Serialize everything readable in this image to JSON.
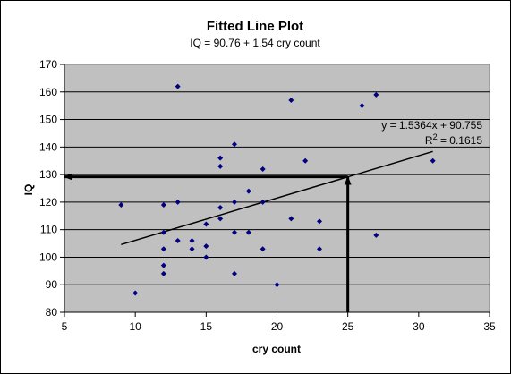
{
  "chart_data": {
    "type": "scatter",
    "title": "Fitted Line Plot",
    "subtitle": "IQ = 90.76 + 1.54 cry count",
    "xlabel": "cry count",
    "ylabel": "IQ",
    "xlim": [
      5,
      35
    ],
    "ylim": [
      80,
      170
    ],
    "xticks": [
      5,
      10,
      15,
      20,
      25,
      30,
      35
    ],
    "yticks": [
      80,
      90,
      100,
      110,
      120,
      130,
      140,
      150,
      160,
      170
    ],
    "grid": true,
    "legend": "none",
    "point_color": "#000080",
    "plot_background": "#c0c0c0",
    "points": [
      {
        "x": 9,
        "y": 119
      },
      {
        "x": 10,
        "y": 87
      },
      {
        "x": 12,
        "y": 94
      },
      {
        "x": 12,
        "y": 97
      },
      {
        "x": 12,
        "y": 103
      },
      {
        "x": 12,
        "y": 109
      },
      {
        "x": 12,
        "y": 119
      },
      {
        "x": 13,
        "y": 106
      },
      {
        "x": 13,
        "y": 120
      },
      {
        "x": 13,
        "y": 162
      },
      {
        "x": 14,
        "y": 103
      },
      {
        "x": 14,
        "y": 106
      },
      {
        "x": 15,
        "y": 100
      },
      {
        "x": 15,
        "y": 104
      },
      {
        "x": 15,
        "y": 112
      },
      {
        "x": 16,
        "y": 114
      },
      {
        "x": 16,
        "y": 118
      },
      {
        "x": 16,
        "y": 133
      },
      {
        "x": 16,
        "y": 136
      },
      {
        "x": 17,
        "y": 94
      },
      {
        "x": 17,
        "y": 109
      },
      {
        "x": 17,
        "y": 120
      },
      {
        "x": 17,
        "y": 141
      },
      {
        "x": 18,
        "y": 109
      },
      {
        "x": 18,
        "y": 124
      },
      {
        "x": 19,
        "y": 103
      },
      {
        "x": 19,
        "y": 120
      },
      {
        "x": 19,
        "y": 132
      },
      {
        "x": 20,
        "y": 90
      },
      {
        "x": 21,
        "y": 114
      },
      {
        "x": 21,
        "y": 157
      },
      {
        "x": 22,
        "y": 135
      },
      {
        "x": 23,
        "y": 103
      },
      {
        "x": 23,
        "y": 113
      },
      {
        "x": 26,
        "y": 155
      },
      {
        "x": 27,
        "y": 108
      },
      {
        "x": 27,
        "y": 159
      },
      {
        "x": 31,
        "y": 135
      }
    ],
    "trendline": {
      "slope": 1.5364,
      "intercept": 90.755,
      "x_range": [
        9,
        31
      ],
      "equation": "y = 1.5364x + 90.755",
      "r2_prefix": "R",
      "r2_sup": "2",
      "r2_value": " = 0.1615"
    },
    "annotation_arrows": [
      {
        "from": [
          25,
          80
        ],
        "to": [
          25,
          129.2
        ],
        "direction": "up"
      },
      {
        "from": [
          25,
          129.2
        ],
        "to": [
          5,
          129.2
        ],
        "direction": "left"
      }
    ]
  }
}
